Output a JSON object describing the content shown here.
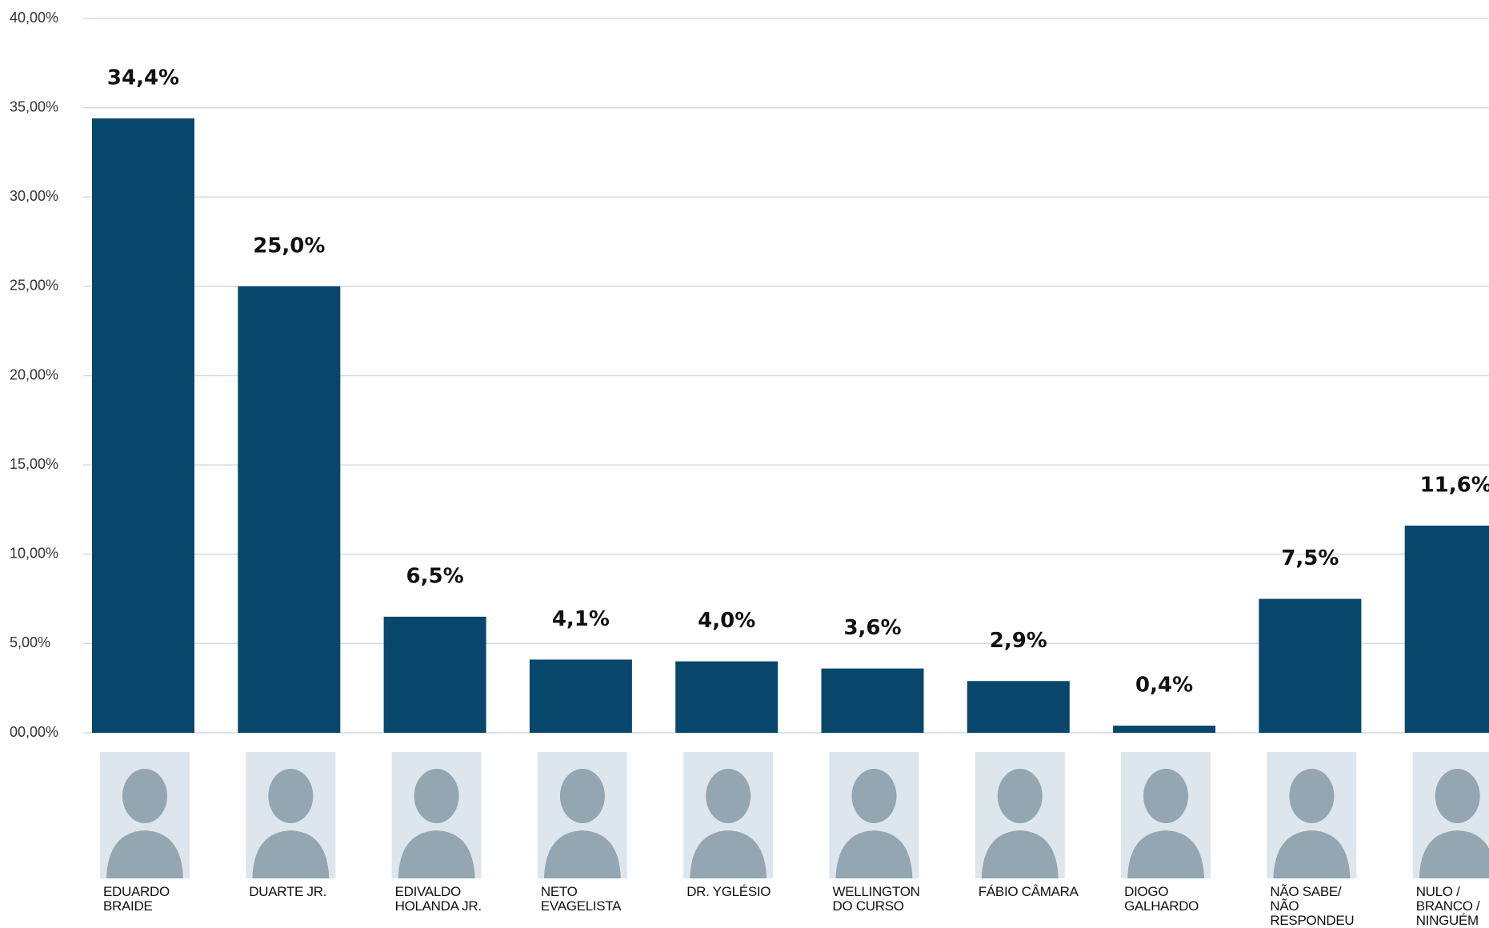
{
  "chart_data": {
    "type": "bar",
    "categories": [
      "EDUARDO BRAIDE",
      "DUARTE JR.",
      "EDIVALDO HOLANDA JR.",
      "NETO EVAGELISTA",
      "DR. YGLÉSIO",
      "WELLINGTON DO CURSO",
      "FÁBIO CÂMARA",
      "DIOGO GALHARDO",
      "NÃO SABE/ NÃO RESPONDEU",
      "NULO / BRANCO / NINGUÉM"
    ],
    "values": [
      34.4,
      25.0,
      6.5,
      4.1,
      4.0,
      3.6,
      2.9,
      0.4,
      7.5,
      11.6
    ],
    "value_labels": [
      "34,4%",
      "25,0%",
      "6,5%",
      "4,1%",
      "4,0%",
      "3,6%",
      "2,9%",
      "0,4%",
      "7,5%",
      "11,6%"
    ],
    "color": "#08476b",
    "ylim": [
      0,
      40
    ],
    "yticks": [
      {
        "value": 0,
        "label": "00,00%"
      },
      {
        "value": 5,
        "label": "5,00%"
      },
      {
        "value": 10,
        "label": "10,00%"
      },
      {
        "value": 15,
        "label": "15,00%"
      },
      {
        "value": 20,
        "label": "20,00%"
      },
      {
        "value": 25,
        "label": "25,00%"
      },
      {
        "value": 30,
        "label": "30,00%"
      },
      {
        "value": 35,
        "label": "35,00%"
      },
      {
        "value": 40,
        "label": "40,00%"
      }
    ],
    "grid": true
  }
}
